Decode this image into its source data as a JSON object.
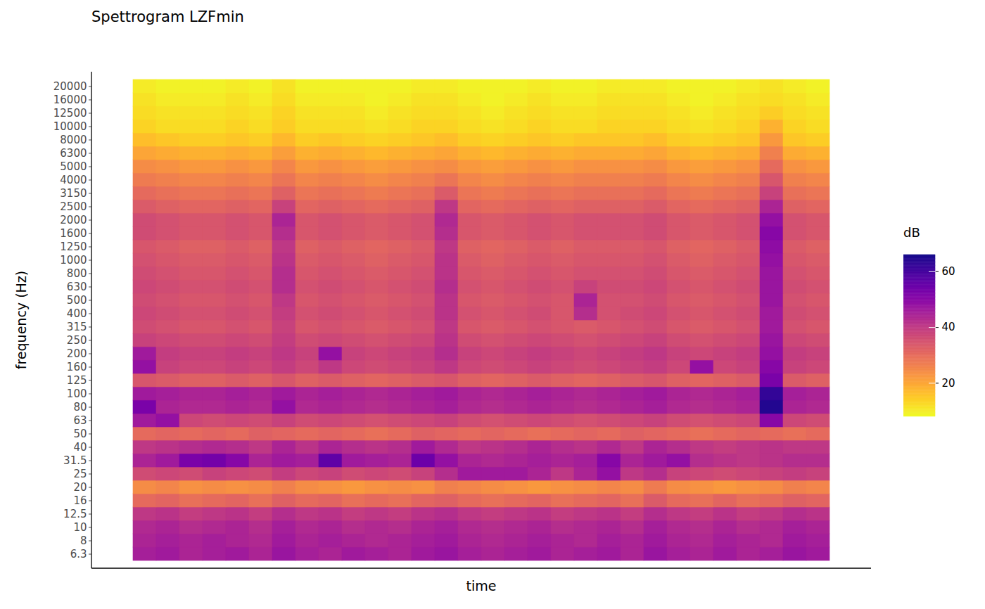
{
  "chart_data": {
    "type": "heatmap",
    "title": "Spettrogram LZFmin",
    "x_label": "time",
    "y_label": "frequency (Hz)",
    "tick_labels": "y",
    "categories": [
      "6.3",
      "8",
      "10",
      "12.5",
      "16",
      "20",
      "25",
      "31.5",
      "40",
      "50",
      "63",
      "80",
      "100",
      "125",
      "160",
      "200",
      "250",
      "315",
      "400",
      "500",
      "630",
      "800",
      "1000",
      "1250",
      "1600",
      "2000",
      "2500",
      "3150",
      "4000",
      "5000",
      "6300",
      "8000",
      "10000",
      "12500",
      "16000",
      "20000"
    ],
    "cells": [
      [
        45,
        46,
        44,
        45,
        46,
        44,
        47,
        45,
        44,
        46,
        45,
        44,
        46,
        47,
        45,
        44,
        45,
        46,
        44,
        45,
        46,
        44,
        47,
        45,
        44,
        46,
        44,
        45,
        47,
        46
      ],
      [
        44,
        45,
        44,
        45,
        44,
        43,
        46,
        44,
        45,
        44,
        43,
        44,
        45,
        46,
        44,
        43,
        44,
        45,
        44,
        43,
        45,
        44,
        46,
        44,
        43,
        45,
        44,
        43,
        46,
        45
      ],
      [
        43,
        44,
        42,
        43,
        44,
        42,
        45,
        43,
        44,
        42,
        43,
        42,
        44,
        45,
        43,
        42,
        43,
        44,
        42,
        43,
        44,
        42,
        45,
        43,
        42,
        44,
        42,
        43,
        45,
        44
      ],
      [
        40,
        41,
        39,
        40,
        41,
        39,
        42,
        40,
        41,
        39,
        40,
        39,
        41,
        42,
        40,
        39,
        40,
        41,
        39,
        40,
        41,
        39,
        42,
        40,
        39,
        41,
        39,
        40,
        42,
        41
      ],
      [
        30,
        31,
        29,
        30,
        31,
        29,
        32,
        30,
        31,
        29,
        30,
        29,
        31,
        32,
        30,
        29,
        30,
        31,
        29,
        30,
        31,
        29,
        33,
        30,
        29,
        31,
        29,
        30,
        32,
        31
      ],
      [
        24,
        25,
        23,
        24,
        23,
        24,
        26,
        24,
        23,
        22,
        23,
        24,
        23,
        26,
        25,
        24,
        23,
        22,
        23,
        24,
        25,
        24,
        27,
        24,
        23,
        22,
        23,
        24,
        26,
        25
      ],
      [
        36,
        37,
        36,
        38,
        37,
        36,
        39,
        37,
        38,
        36,
        37,
        36,
        38,
        42,
        46,
        46,
        46,
        44,
        40,
        44,
        48,
        40,
        42,
        38,
        37,
        36,
        37,
        38,
        39,
        38
      ],
      [
        44,
        46,
        52,
        53,
        50,
        44,
        46,
        45,
        56,
        46,
        45,
        44,
        54,
        48,
        44,
        43,
        44,
        45,
        44,
        45,
        50,
        44,
        46,
        48,
        42,
        41,
        40,
        41,
        42,
        42
      ],
      [
        40,
        41,
        42,
        43,
        42,
        40,
        44,
        41,
        44,
        42,
        41,
        42,
        46,
        43,
        40,
        41,
        42,
        44,
        42,
        41,
        43,
        40,
        44,
        42,
        40,
        39,
        40,
        41,
        40,
        40
      ],
      [
        30,
        31,
        30,
        31,
        30,
        32,
        31,
        30,
        31,
        30,
        29,
        30,
        32,
        31,
        30,
        31,
        30,
        29,
        30,
        31,
        30,
        32,
        31,
        30,
        29,
        30,
        31,
        30,
        29,
        30
      ],
      [
        46,
        48,
        37,
        36,
        37,
        36,
        38,
        36,
        37,
        36,
        35,
        36,
        37,
        38,
        36,
        35,
        36,
        37,
        36,
        35,
        36,
        37,
        38,
        36,
        35,
        36,
        37,
        50,
        37,
        36
      ],
      [
        52,
        44,
        43,
        43,
        44,
        43,
        48,
        43,
        44,
        43,
        42,
        43,
        44,
        45,
        43,
        42,
        43,
        44,
        43,
        42,
        43,
        44,
        45,
        43,
        42,
        43,
        44,
        64,
        44,
        43
      ],
      [
        46,
        45,
        44,
        44,
        45,
        44,
        46,
        44,
        45,
        44,
        43,
        44,
        45,
        46,
        44,
        43,
        44,
        45,
        44,
        43,
        44,
        45,
        46,
        44,
        43,
        44,
        45,
        62,
        45,
        44
      ],
      [
        34,
        33,
        32,
        32,
        33,
        32,
        34,
        32,
        33,
        32,
        31,
        32,
        33,
        34,
        32,
        31,
        32,
        33,
        32,
        31,
        32,
        33,
        34,
        32,
        31,
        32,
        33,
        52,
        33,
        32
      ],
      [
        48,
        38,
        37,
        37,
        38,
        37,
        39,
        37,
        40,
        37,
        36,
        37,
        38,
        40,
        37,
        36,
        37,
        38,
        37,
        36,
        37,
        38,
        39,
        37,
        48,
        37,
        38,
        50,
        38,
        37
      ],
      [
        46,
        39,
        38,
        38,
        39,
        38,
        40,
        38,
        48,
        38,
        37,
        38,
        39,
        42,
        38,
        37,
        38,
        39,
        38,
        37,
        38,
        39,
        40,
        38,
        37,
        38,
        39,
        48,
        39,
        38
      ],
      [
        38,
        37,
        36,
        36,
        37,
        36,
        39,
        36,
        37,
        36,
        35,
        36,
        37,
        41,
        36,
        35,
        36,
        37,
        36,
        35,
        36,
        37,
        38,
        36,
        35,
        36,
        37,
        47,
        37,
        36
      ],
      [
        36,
        35,
        34,
        34,
        35,
        34,
        38,
        34,
        35,
        34,
        33,
        34,
        35,
        40,
        34,
        33,
        34,
        35,
        34,
        33,
        34,
        35,
        36,
        34,
        33,
        34,
        35,
        46,
        35,
        34
      ],
      [
        37,
        36,
        35,
        35,
        36,
        35,
        39,
        35,
        36,
        35,
        34,
        35,
        36,
        41,
        35,
        34,
        35,
        36,
        34,
        42,
        35,
        36,
        37,
        35,
        34,
        35,
        36,
        46,
        36,
        35
      ],
      [
        36,
        35,
        34,
        34,
        35,
        34,
        40,
        34,
        35,
        34,
        33,
        34,
        35,
        41,
        34,
        33,
        34,
        35,
        34,
        44,
        35,
        35,
        36,
        34,
        33,
        34,
        35,
        47,
        35,
        34
      ],
      [
        37,
        36,
        35,
        35,
        36,
        35,
        42,
        35,
        36,
        35,
        34,
        35,
        36,
        42,
        35,
        34,
        35,
        36,
        35,
        38,
        36,
        36,
        37,
        35,
        34,
        35,
        36,
        47,
        36,
        35
      ],
      [
        36,
        35,
        34,
        34,
        35,
        34,
        42,
        34,
        35,
        34,
        33,
        34,
        35,
        41,
        34,
        33,
        34,
        35,
        34,
        35,
        35,
        35,
        36,
        34,
        33,
        34,
        35,
        47,
        35,
        34
      ],
      [
        35,
        34,
        33,
        33,
        34,
        33,
        41,
        33,
        34,
        33,
        32,
        33,
        34,
        41,
        33,
        32,
        33,
        34,
        33,
        34,
        34,
        34,
        35,
        33,
        32,
        33,
        34,
        48,
        34,
        33
      ],
      [
        34,
        33,
        32,
        32,
        33,
        32,
        40,
        32,
        33,
        32,
        31,
        32,
        33,
        40,
        32,
        31,
        32,
        33,
        32,
        33,
        33,
        33,
        34,
        32,
        31,
        32,
        33,
        49,
        33,
        32
      ],
      [
        36,
        35,
        34,
        34,
        35,
        34,
        42,
        34,
        35,
        34,
        33,
        34,
        35,
        42,
        34,
        33,
        34,
        35,
        34,
        35,
        35,
        35,
        36,
        34,
        33,
        34,
        35,
        50,
        35,
        34
      ],
      [
        36,
        35,
        34,
        34,
        35,
        34,
        44,
        34,
        35,
        34,
        33,
        34,
        35,
        43,
        34,
        33,
        34,
        35,
        34,
        35,
        35,
        35,
        36,
        34,
        33,
        34,
        35,
        48,
        35,
        34
      ],
      [
        33,
        32,
        31,
        31,
        32,
        31,
        38,
        31,
        32,
        31,
        30,
        31,
        32,
        40,
        31,
        30,
        31,
        32,
        31,
        32,
        32,
        32,
        33,
        31,
        30,
        31,
        32,
        44,
        32,
        31
      ],
      [
        30,
        29,
        28,
        28,
        29,
        28,
        32,
        28,
        29,
        28,
        27,
        28,
        29,
        33,
        28,
        27,
        28,
        29,
        28,
        29,
        29,
        29,
        30,
        28,
        27,
        28,
        29,
        38,
        29,
        28
      ],
      [
        27,
        26,
        25,
        25,
        26,
        25,
        28,
        25,
        26,
        25,
        24,
        25,
        26,
        28,
        25,
        24,
        25,
        26,
        25,
        26,
        26,
        26,
        27,
        25,
        24,
        25,
        26,
        34,
        26,
        25
      ],
      [
        24,
        23,
        22,
        22,
        23,
        22,
        25,
        22,
        23,
        22,
        21,
        22,
        23,
        24,
        22,
        21,
        22,
        23,
        22,
        23,
        23,
        23,
        24,
        22,
        21,
        22,
        23,
        30,
        23,
        22
      ],
      [
        20,
        19,
        18,
        18,
        19,
        18,
        21,
        18,
        19,
        18,
        17,
        18,
        19,
        20,
        18,
        17,
        18,
        19,
        18,
        19,
        19,
        19,
        20,
        18,
        17,
        18,
        19,
        26,
        19,
        18
      ],
      [
        16,
        15,
        14,
        14,
        15,
        14,
        17,
        14,
        15,
        14,
        13,
        14,
        15,
        16,
        14,
        13,
        14,
        15,
        14,
        15,
        15,
        15,
        16,
        14,
        13,
        14,
        15,
        22,
        15,
        14
      ],
      [
        13,
        12,
        12,
        12,
        13,
        12,
        14,
        12,
        12,
        12,
        11,
        12,
        13,
        13,
        12,
        11,
        12,
        13,
        12,
        12,
        13,
        13,
        13,
        12,
        11,
        12,
        13,
        18,
        13,
        12
      ],
      [
        12,
        11,
        11,
        11,
        12,
        11,
        13,
        11,
        11,
        11,
        10,
        11,
        12,
        12,
        11,
        10,
        11,
        12,
        11,
        11,
        12,
        12,
        12,
        11,
        10,
        11,
        12,
        14,
        12,
        11
      ],
      [
        11,
        10,
        10,
        10,
        11,
        10,
        12,
        10,
        10,
        10,
        9,
        10,
        11,
        11,
        10,
        9,
        10,
        11,
        10,
        10,
        11,
        11,
        11,
        10,
        9,
        10,
        11,
        12,
        11,
        10
      ],
      [
        10,
        9,
        9,
        9,
        10,
        9,
        11,
        9,
        9,
        9,
        9,
        9,
        10,
        10,
        9,
        9,
        9,
        10,
        9,
        9,
        10,
        10,
        10,
        9,
        9,
        9,
        10,
        11,
        10,
        9
      ]
    ],
    "color_label": "dB",
    "color_range": [
      8,
      66
    ],
    "color_ticks": [
      20,
      40,
      60
    ]
  }
}
